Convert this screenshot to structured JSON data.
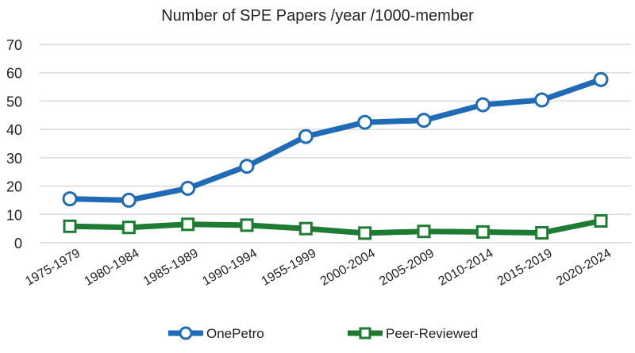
{
  "chart_data": {
    "type": "line",
    "title": "Number of SPE Papers /year /1000-member",
    "xlabel": "",
    "ylabel": "",
    "ylim": [
      0,
      70
    ],
    "yticks": [
      0,
      10,
      20,
      30,
      40,
      50,
      60,
      70
    ],
    "grid": true,
    "legend_position": "bottom",
    "categories": [
      "1975-1979",
      "1980-1984",
      "1985-1989",
      "1990-1994",
      "1955-1999",
      "2000-2004",
      "2005-2009",
      "2010-2014",
      "2015-2019",
      "2020-2024"
    ],
    "series": [
      {
        "name": "OnePetro",
        "color": "#1f6bb8",
        "marker": "circle",
        "values": [
          15.5,
          15.0,
          19.2,
          27.0,
          37.5,
          42.5,
          43.2,
          48.7,
          50.4,
          57.6
        ]
      },
      {
        "name": "Peer-Reviewed",
        "color": "#1e7b32",
        "marker": "square",
        "values": [
          5.8,
          5.4,
          6.5,
          6.2,
          5.0,
          3.4,
          4.0,
          3.8,
          3.5,
          7.7
        ]
      }
    ]
  }
}
